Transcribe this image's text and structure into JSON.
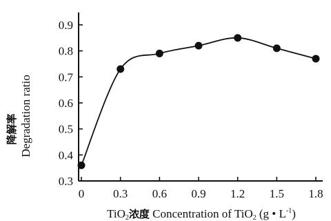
{
  "chart_data": {
    "type": "line",
    "title": "",
    "x": [
      0,
      0.3,
      0.6,
      0.9,
      1.2,
      1.5,
      1.8
    ],
    "x_tick_labels": [
      "0",
      "0.3",
      "0.6",
      "0.9",
      "1.2",
      "1.5",
      "1.8"
    ],
    "series": [
      {
        "values": [
          0.36,
          0.73,
          0.79,
          0.82,
          0.85,
          0.81,
          0.77
        ],
        "color": "#111111",
        "marker": "filled-circle"
      }
    ],
    "xlabel": {
      "text": "TiO",
      "sub1": "2",
      "cn": "浓度",
      "en": " Concentration of  TiO",
      "sub2": "2",
      "unit_pre": " (g • L",
      "unit_sup": "-1",
      "unit_post": ")"
    },
    "ylabel": {
      "cn": "降解率",
      "en": "Degradation ratio"
    },
    "ylim": [
      0.3,
      0.9
    ],
    "y_ticks": [
      0.3,
      0.4,
      0.5,
      0.6,
      0.7,
      0.8,
      0.9
    ],
    "y_tick_labels": [
      "0.3",
      "0.4",
      "0.5",
      "0.6",
      "0.7",
      "0.8",
      "0.9"
    ],
    "xlim": [
      0,
      1.8
    ],
    "grid": false,
    "legend": "none"
  }
}
